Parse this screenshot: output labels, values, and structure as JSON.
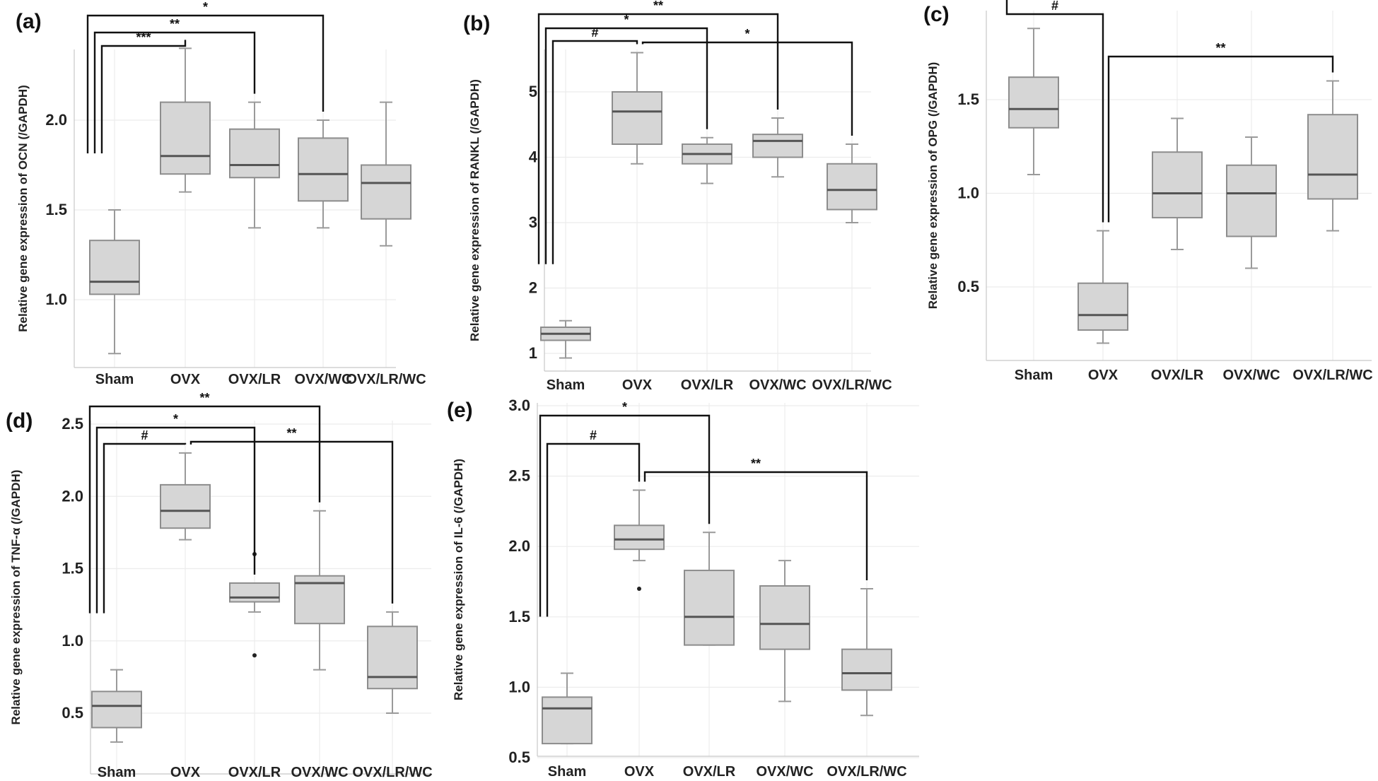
{
  "figure": {
    "colors": {
      "box_fill": "#d6d6d6",
      "box_stroke": "#8d8d8d",
      "median": "#555555",
      "bracket": "#111111"
    }
  },
  "chart_data": [
    {
      "panel": "(a)",
      "type": "box",
      "ylabel": "Relative gene expression of OCN (/GAPDH)",
      "categories": [
        "Sham",
        "OVX",
        "OVX/LR",
        "OVX/WC",
        "OVX/LR/WC"
      ],
      "yticks": [
        "1.0",
        "1.5",
        "2.0"
      ],
      "ytick_values": [
        1.0,
        1.5,
        2.0
      ],
      "ylim": [
        0.6,
        2.4
      ],
      "boxes": [
        {
          "min": 0.7,
          "q1": 1.03,
          "median": 1.1,
          "q3": 1.33,
          "max": 1.5,
          "outliers": []
        },
        {
          "min": 1.6,
          "q1": 1.7,
          "median": 1.8,
          "q3": 2.1,
          "max": 2.4,
          "outliers": []
        },
        {
          "min": 1.4,
          "q1": 1.68,
          "median": 1.75,
          "q3": 1.95,
          "max": 2.1,
          "outliers": []
        },
        {
          "min": 1.4,
          "q1": 1.55,
          "median": 1.7,
          "q3": 1.9,
          "max": 2.0,
          "outliers": []
        },
        {
          "min": 1.3,
          "q1": 1.45,
          "median": 1.65,
          "q3": 1.75,
          "max": 2.1,
          "outliers": []
        }
      ],
      "brackets": [
        {
          "from": 0,
          "to": 3,
          "label": "*"
        },
        {
          "from": 0,
          "to": 2,
          "label": "**"
        },
        {
          "from": 0,
          "to": 1,
          "label": "***"
        }
      ]
    },
    {
      "panel": "(b)",
      "type": "box",
      "ylabel": "Relative gene expression of RANKL (/GAPDH)",
      "categories": [
        "Sham",
        "OVX",
        "OVX/LR",
        "OVX/WC",
        "OVX/LR/WC"
      ],
      "yticks": [
        "1",
        "2",
        "3",
        "4",
        "5"
      ],
      "ytick_values": [
        1,
        2,
        3,
        4,
        5
      ],
      "ylim": [
        0.8,
        5.7
      ],
      "boxes": [
        {
          "min": 0.93,
          "q1": 1.2,
          "median": 1.3,
          "q3": 1.4,
          "max": 1.5,
          "outliers": []
        },
        {
          "min": 3.9,
          "q1": 4.2,
          "median": 4.7,
          "q3": 5.0,
          "max": 5.6,
          "outliers": []
        },
        {
          "min": 3.6,
          "q1": 3.9,
          "median": 4.05,
          "q3": 4.2,
          "max": 4.3,
          "outliers": []
        },
        {
          "min": 3.7,
          "q1": 4.0,
          "median": 4.25,
          "q3": 4.35,
          "max": 4.6,
          "outliers": []
        },
        {
          "min": 3.0,
          "q1": 3.2,
          "median": 3.5,
          "q3": 3.9,
          "max": 4.2,
          "outliers": []
        }
      ],
      "brackets": [
        {
          "from": 0,
          "to": 3,
          "label": "**"
        },
        {
          "from": 0,
          "to": 2,
          "label": "*"
        },
        {
          "from": 0,
          "to": 1,
          "label": "#"
        },
        {
          "from": 1,
          "to": 4,
          "label": "*"
        }
      ]
    },
    {
      "panel": "(c)",
      "type": "box",
      "ylabel": "Relative gene expression of OPG (/GAPDH)",
      "categories": [
        "Sham",
        "OVX",
        "OVX/LR",
        "OVX/WC",
        "OVX/LR/WC"
      ],
      "yticks": [
        "0.5",
        "1.0",
        "1.5"
      ],
      "ytick_values": [
        0.5,
        1.0,
        1.5
      ],
      "ylim": [
        0.1,
        1.9
      ],
      "boxes": [
        {
          "min": 1.1,
          "q1": 1.35,
          "median": 1.45,
          "q3": 1.62,
          "max": 1.88,
          "outliers": []
        },
        {
          "min": 0.2,
          "q1": 0.27,
          "median": 0.35,
          "q3": 0.52,
          "max": 0.8,
          "outliers": []
        },
        {
          "min": 0.7,
          "q1": 0.87,
          "median": 1.0,
          "q3": 1.22,
          "max": 1.4,
          "outliers": []
        },
        {
          "min": 0.6,
          "q1": 0.77,
          "median": 1.0,
          "q3": 1.15,
          "max": 1.3,
          "outliers": []
        },
        {
          "min": 0.8,
          "q1": 0.97,
          "median": 1.1,
          "q3": 1.42,
          "max": 1.6,
          "outliers": []
        }
      ],
      "brackets": [
        {
          "from": 0,
          "to": 1,
          "label": "#"
        },
        {
          "from": 1,
          "to": 4,
          "label": "**"
        }
      ]
    },
    {
      "panel": "(d)",
      "type": "box",
      "ylabel": "Relative gene expression of TNF-α (/GAPDH)",
      "categories": [
        "Sham",
        "OVX",
        "OVX/LR",
        "OVX/WC",
        "OVX/LR/WC"
      ],
      "yticks": [
        "0.5",
        "1.0",
        "1.5",
        "2.0",
        "2.5"
      ],
      "ytick_values": [
        0.5,
        1.0,
        1.5,
        2.0,
        2.5
      ],
      "ylim": [
        0.2,
        2.5
      ],
      "boxes": [
        {
          "min": 0.3,
          "q1": 0.4,
          "median": 0.55,
          "q3": 0.65,
          "max": 0.8,
          "outliers": []
        },
        {
          "min": 1.7,
          "q1": 1.78,
          "median": 1.9,
          "q3": 2.08,
          "max": 2.3,
          "outliers": []
        },
        {
          "min": 1.2,
          "q1": 1.27,
          "median": 1.3,
          "q3": 1.4,
          "max": 1.4,
          "outliers": [
            0.9,
            1.6
          ]
        },
        {
          "min": 0.8,
          "q1": 1.12,
          "median": 1.4,
          "q3": 1.45,
          "max": 1.9,
          "outliers": []
        },
        {
          "min": 0.5,
          "q1": 0.67,
          "median": 0.75,
          "q3": 1.1,
          "max": 1.2,
          "outliers": []
        }
      ],
      "brackets": [
        {
          "from": 0,
          "to": 3,
          "label": "**"
        },
        {
          "from": 0,
          "to": 2,
          "label": "*"
        },
        {
          "from": 0,
          "to": 1,
          "label": "#"
        },
        {
          "from": 1,
          "to": 4,
          "label": "**"
        }
      ]
    },
    {
      "panel": "(e)",
      "type": "box",
      "ylabel": "Relative gene expression of IL-6 (/GAPDH)",
      "categories": [
        "Sham",
        "OVX",
        "OVX/LR",
        "OVX/WC",
        "OVX/LR/WC"
      ],
      "yticks": [
        "0.5",
        "1.0",
        "1.5",
        "2.0",
        "2.5",
        "3.0"
      ],
      "ytick_values": [
        0.5,
        1.0,
        1.5,
        2.0,
        2.5,
        3.0
      ],
      "ylim": [
        0.5,
        3.0
      ],
      "boxes": [
        {
          "min": 0.6,
          "q1": 0.6,
          "median": 0.85,
          "q3": 0.93,
          "max": 1.1,
          "outliers": []
        },
        {
          "min": 1.9,
          "q1": 1.98,
          "median": 2.05,
          "q3": 2.15,
          "max": 2.4,
          "outliers": [
            1.7
          ]
        },
        {
          "min": 1.3,
          "q1": 1.3,
          "median": 1.5,
          "q3": 1.83,
          "max": 2.1,
          "outliers": []
        },
        {
          "min": 0.9,
          "q1": 1.27,
          "median": 1.45,
          "q3": 1.72,
          "max": 1.9,
          "outliers": []
        },
        {
          "min": 0.8,
          "q1": 0.98,
          "median": 1.1,
          "q3": 1.27,
          "max": 1.7,
          "outliers": []
        }
      ],
      "brackets": [
        {
          "from": 0,
          "to": 2,
          "label": "*"
        },
        {
          "from": 0,
          "to": 1,
          "label": "#"
        },
        {
          "from": 1,
          "to": 4,
          "label": "**"
        }
      ]
    }
  ]
}
